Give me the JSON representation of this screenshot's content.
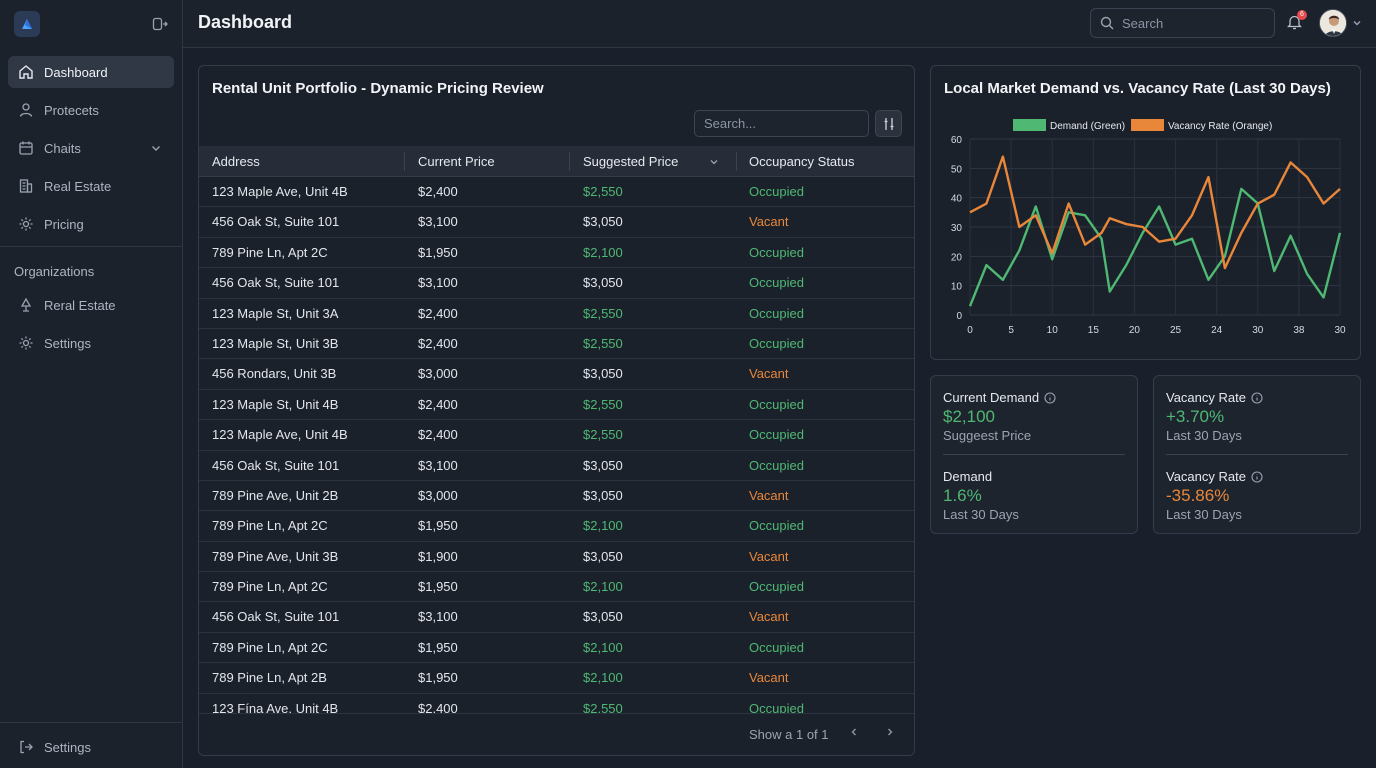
{
  "header": {
    "title": "Dashboard",
    "search_placeholder": "Search",
    "notification_count": "6"
  },
  "sidebar": {
    "items": [
      {
        "label": "Dashboard",
        "icon": "home-icon",
        "active": true
      },
      {
        "label": "Protecets",
        "icon": "user-icon"
      },
      {
        "label": "Chaits",
        "icon": "calendar-icon"
      },
      {
        "label": "Real Estate",
        "icon": "building-icon"
      },
      {
        "label": "Pricing",
        "icon": "gear-icon"
      }
    ],
    "section_title": "Organizations",
    "org_items": [
      {
        "label": "Reral Estate",
        "icon": "tree-icon"
      },
      {
        "label": "Settings",
        "icon": "gear-icon"
      }
    ],
    "bottom_item": {
      "label": "Settings",
      "icon": "logout-icon"
    }
  },
  "table": {
    "title": "Rental Unit Portfolio - Dynamic Pricing Review",
    "search_placeholder": "Search...",
    "columns": [
      "Address",
      "Current Price",
      "Suggested Price",
      "Occupancy Status"
    ],
    "rows": [
      {
        "address": "123 Maple Ave, Unit 4B",
        "current": "$2,400",
        "suggested": "$2,550",
        "status": "Occupied"
      },
      {
        "address": "456 Oak St, Suite 101",
        "current": "$3,100",
        "suggested": "$3,050",
        "status": "Vacant"
      },
      {
        "address": "789 Pine Ln, Apt 2C",
        "current": "$1,950",
        "suggested": "$2,100",
        "status": "Occupied"
      },
      {
        "address": "456 Oak St, Suite 101",
        "current": "$3,100",
        "suggested": "$3,050",
        "status": "Occupied"
      },
      {
        "address": "123 Maple St, Unit 3A",
        "current": "$2,400",
        "suggested": "$2,550",
        "status": "Occupied"
      },
      {
        "address": "123 Maple St, Unit 3B",
        "current": "$2,400",
        "suggested": "$2,550",
        "status": "Occupied"
      },
      {
        "address": "456 Rondars, Unit 3B",
        "current": "$3,000",
        "suggested": "$3,050",
        "status": "Vacant"
      },
      {
        "address": "123 Maple St, Unit 4B",
        "current": "$2,400",
        "suggested": "$2,550",
        "status": "Occupied"
      },
      {
        "address": "123 Maple Ave, Unit 4B",
        "current": "$2,400",
        "suggested": "$2,550",
        "status": "Occupied"
      },
      {
        "address": "456 Oak St, Suite 101",
        "current": "$3,100",
        "suggested": "$3,050",
        "status": "Occupied"
      },
      {
        "address": "789 Pine Ave, Unit 2B",
        "current": "$3,000",
        "suggested": "$3,050",
        "status": "Vacant"
      },
      {
        "address": "789 Pine Ln, Apt 2C",
        "current": "$1,950",
        "suggested": "$2,100",
        "status": "Occupied"
      },
      {
        "address": "789 Pine Ave, Unit 3B",
        "current": "$1,900",
        "suggested": "$3,050",
        "status": "Vacant"
      },
      {
        "address": "789 Pine Ln, Apt 2C",
        "current": "$1,950",
        "suggested": "$2,100",
        "status": "Occupied"
      },
      {
        "address": "456 Oak St, Suite 101",
        "current": "$3,100",
        "suggested": "$3,050",
        "status": "Vacant"
      },
      {
        "address": "789 Pine Ln, Apt 2C",
        "current": "$1,950",
        "suggested": "$2,100",
        "status": "Occupied"
      },
      {
        "address": "789 Pine Ln, Apt 2B",
        "current": "$1,950",
        "suggested": "$2,100",
        "status": "Vacant"
      },
      {
        "address": "123 Fína Ave, Unit 4B",
        "current": "$2,400",
        "suggested": "$2,550",
        "status": "Occupied"
      }
    ],
    "pagination": "Show a 1 of 1"
  },
  "colors": {
    "green": "#4fb873",
    "orange": "#e8873a",
    "suggested_white_value": "$3,050"
  },
  "chart_data": {
    "type": "line",
    "title": "Local Market Demand vs. Vacancy Rate (Last 30 Days)",
    "legend": [
      "Demand (Green)",
      "Vacancy Rate (Orange)"
    ],
    "legend_position": "top-center",
    "grid": true,
    "xticks": [
      "0",
      "5",
      "10",
      "15",
      "20",
      "25",
      "24",
      "30",
      "38",
      "30"
    ],
    "yticks": [
      "0",
      "10",
      "20",
      "30",
      "40",
      "50",
      "60"
    ],
    "ylim": [
      0,
      60
    ],
    "xlim": [
      0,
      45
    ],
    "series": [
      {
        "name": "Demand (Green)",
        "color": "#4fb873",
        "x": [
          0,
          2,
          4,
          6,
          8,
          10,
          12,
          14,
          16,
          17,
          19,
          21,
          23,
          25,
          27,
          29,
          31,
          33,
          35,
          37,
          39,
          41,
          43,
          45
        ],
        "y": [
          3,
          17,
          12,
          22,
          37,
          19,
          35,
          34,
          26,
          8,
          17,
          28,
          37,
          24,
          26,
          12,
          20,
          43,
          38,
          15,
          27,
          14,
          6,
          28
        ]
      },
      {
        "name": "Vacancy Rate (Orange)",
        "color": "#e8873a",
        "x": [
          0,
          2,
          4,
          6,
          8,
          10,
          12,
          14,
          16,
          17,
          19,
          21,
          23,
          25,
          27,
          29,
          31,
          33,
          35,
          37,
          39,
          41,
          43,
          45
        ],
        "y": [
          35,
          38,
          54,
          30,
          34,
          21,
          38,
          24,
          28,
          33,
          31,
          30,
          25,
          26,
          34,
          47,
          16,
          28,
          38,
          41,
          52,
          47,
          38,
          43
        ]
      }
    ]
  },
  "stats": {
    "card1": {
      "label1": "Current Demand",
      "value1": "$2,100",
      "sub1": "Suggeest Price",
      "label2": "Demand",
      "value2": "1.6%",
      "sub2": "Last 30 Days"
    },
    "card2": {
      "label1": "Vacancy Rate",
      "value1": "+3.70%",
      "sub1": "Last 30 Days",
      "label2": "Vacancy Rate",
      "value2": "-35.86%",
      "sub2": "Last 30 Days"
    }
  }
}
